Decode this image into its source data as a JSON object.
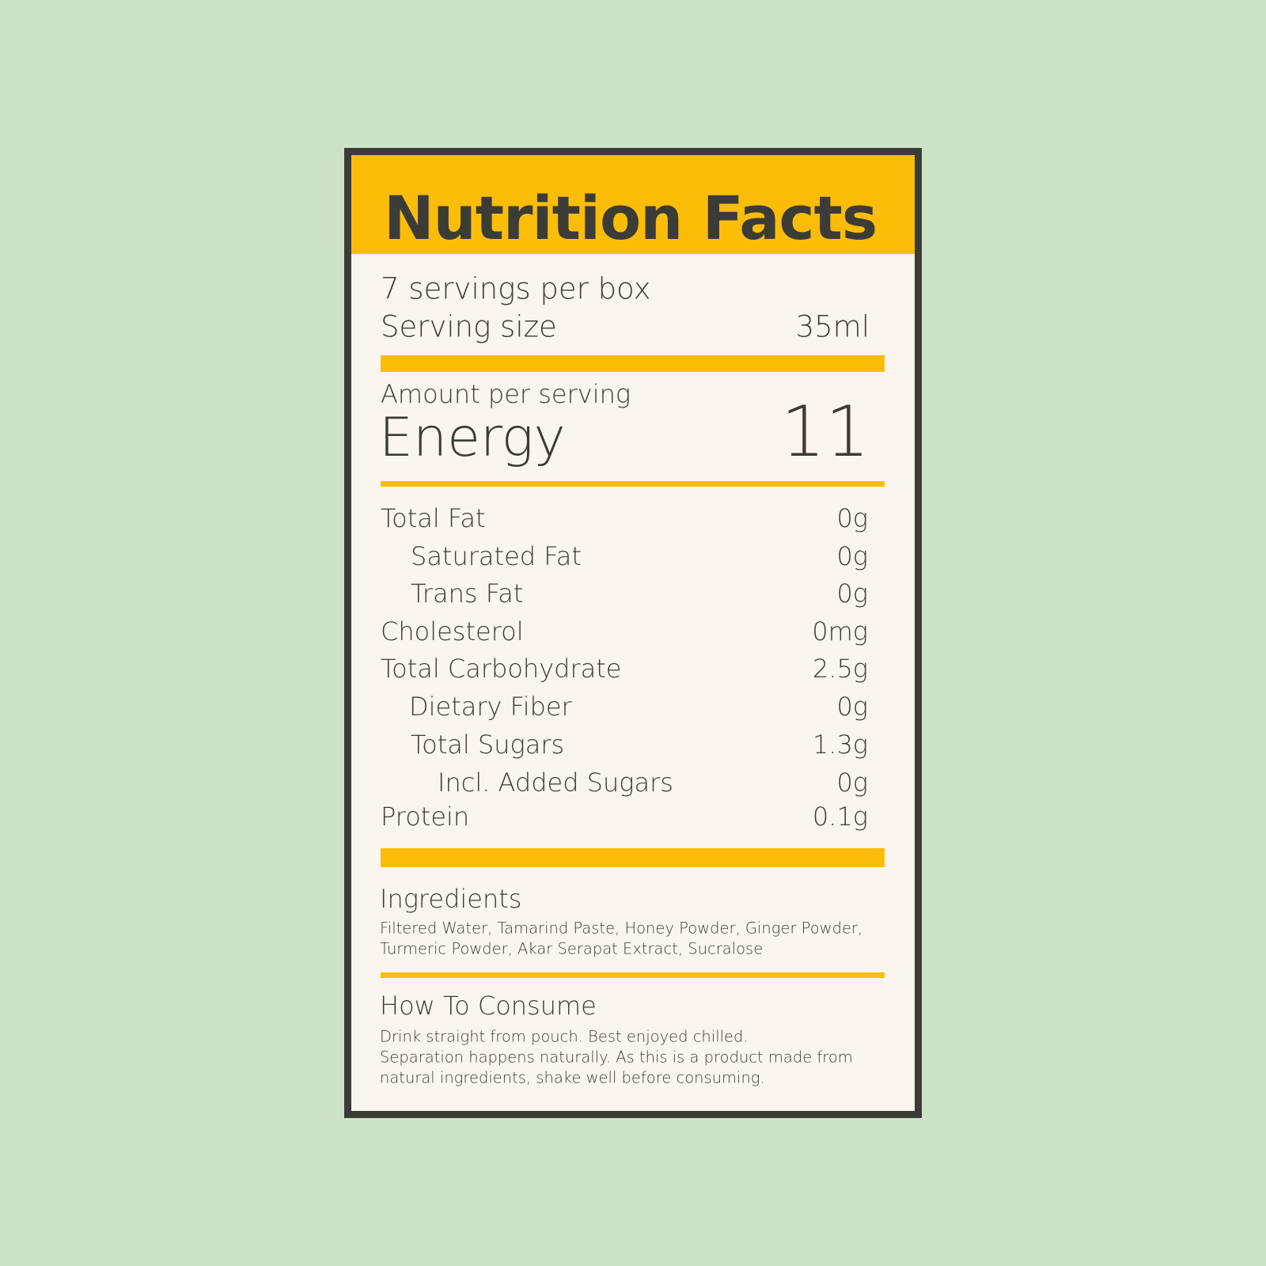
{
  "header": {
    "title": "Nutrition Facts"
  },
  "servings": {
    "per_container": "7 servings per box",
    "size_label": "Serving size",
    "size_value": "35ml"
  },
  "energy": {
    "amount_label": "Amount per serving",
    "label": "Energy",
    "value": "11"
  },
  "nutrients": [
    {
      "name": "Total Fat",
      "value": "0g"
    },
    {
      "name": "Saturated Fat",
      "value": "0g"
    },
    {
      "name": "Trans Fat",
      "value": "0g"
    },
    {
      "name": "Cholesterol",
      "value": "0mg"
    },
    {
      "name": "Total Carbohydrate",
      "value": "2.5g"
    },
    {
      "name": "Dietary Fiber",
      "value": "0g"
    },
    {
      "name": "Total Sugars",
      "value": "1.3g"
    },
    {
      "name": "Incl. Added Sugars",
      "value": "0g"
    },
    {
      "name": "Protein",
      "value": "0.1g"
    }
  ],
  "ingredients": {
    "heading": "Ingredients",
    "lines": [
      "Filtered Water, Tamarind Paste, Honey Powder, Ginger Powder,",
      "Turmeric Powder, Akar Serapat Extract, Sucralose"
    ]
  },
  "how_to_consume": {
    "heading": "How To Consume",
    "lines": [
      "Drink straight from pouch. Best enjoyed chilled.",
      "Separation happens naturally. As this is a product made from",
      "natural ingredients, shake well before consuming."
    ]
  }
}
